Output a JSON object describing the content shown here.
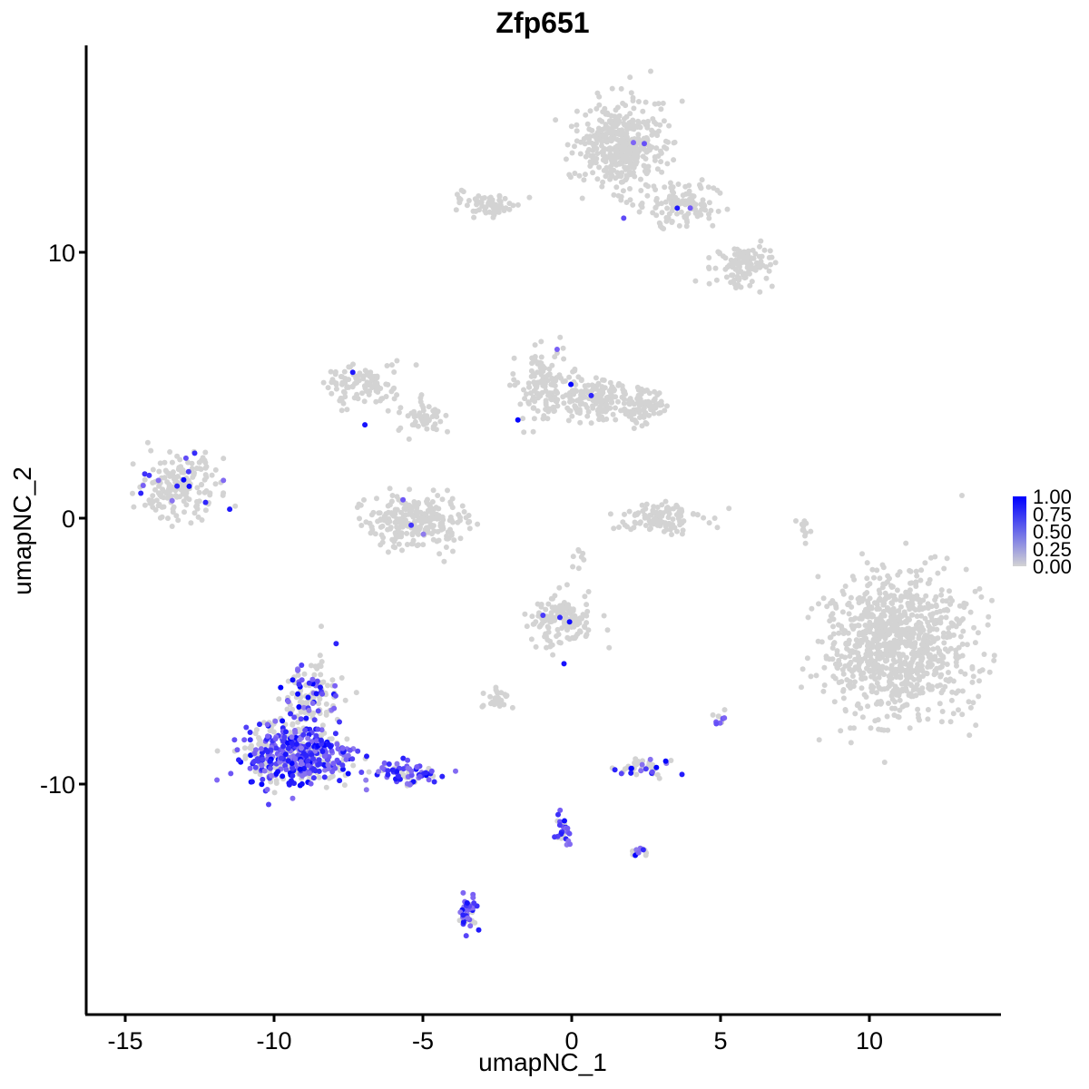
{
  "chart_data": {
    "type": "scatter",
    "title": "Zfp651",
    "xlabel": "umapNC_1",
    "ylabel": "umapNC_2",
    "xlim": [
      -16.5,
      14.2
    ],
    "ylim": [
      -18.4,
      17.8
    ],
    "x_ticks": [
      -15,
      -10,
      -5,
      0,
      5,
      10
    ],
    "x_tick_labels": [
      "-15",
      "-10",
      "-5",
      "0",
      "5",
      "10"
    ],
    "y_ticks": [
      -10,
      0,
      10
    ],
    "y_tick_labels": [
      "-10",
      "0",
      "10"
    ],
    "grid": false,
    "legend": {
      "position": "right",
      "type": "colorbar",
      "min": 0.0,
      "max": 1.0,
      "labels": [
        "1.00",
        "0.75",
        "0.50",
        "0.25",
        "0.00"
      ],
      "low_color": "#d3d3d3",
      "high_color": "#0000ff"
    },
    "clusters": [
      {
        "cx": 1.7,
        "cy": 14.0,
        "rx": 1.3,
        "ry": 1.5,
        "n": 420,
        "expr_frac": 0.005
      },
      {
        "cx": 3.5,
        "cy": 11.8,
        "rx": 1.2,
        "ry": 0.8,
        "n": 120,
        "expr_frac": 0.01
      },
      {
        "cx": 5.8,
        "cy": 9.5,
        "rx": 0.9,
        "ry": 0.7,
        "n": 110,
        "expr_frac": 0.0
      },
      {
        "cx": -2.8,
        "cy": 11.8,
        "rx": 1.0,
        "ry": 0.35,
        "n": 70,
        "expr_frac": 0.02
      },
      {
        "cx": -7.0,
        "cy": 5.0,
        "rx": 1.3,
        "ry": 0.8,
        "n": 110,
        "expr_frac": 0.01
      },
      {
        "cx": -5.0,
        "cy": 3.8,
        "rx": 0.8,
        "ry": 0.5,
        "n": 50,
        "expr_frac": 0.0
      },
      {
        "cx": -1.0,
        "cy": 5.0,
        "rx": 0.7,
        "ry": 1.2,
        "n": 120,
        "expr_frac": 0.01
      },
      {
        "cx": 0.6,
        "cy": 4.5,
        "rx": 1.2,
        "ry": 0.8,
        "n": 170,
        "expr_frac": 0.01
      },
      {
        "cx": 2.3,
        "cy": 4.2,
        "rx": 0.8,
        "ry": 0.6,
        "n": 90,
        "expr_frac": 0.01
      },
      {
        "cx": -5.2,
        "cy": -0.1,
        "rx": 1.5,
        "ry": 0.9,
        "n": 260,
        "expr_frac": 0.015
      },
      {
        "cx": 3.1,
        "cy": 0.0,
        "rx": 1.2,
        "ry": 0.55,
        "n": 110,
        "expr_frac": 0.0
      },
      {
        "cx": -13.2,
        "cy": 1.2,
        "rx": 1.2,
        "ry": 1.0,
        "n": 190,
        "expr_frac": 0.09
      },
      {
        "cx": 10.9,
        "cy": -4.8,
        "rx": 2.1,
        "ry": 2.4,
        "n": 950,
        "expr_frac": 0.002
      },
      {
        "cx": -0.3,
        "cy": -3.8,
        "rx": 1.0,
        "ry": 0.9,
        "n": 150,
        "expr_frac": 0.03
      },
      {
        "cx": -2.5,
        "cy": -6.8,
        "rx": 0.5,
        "ry": 0.3,
        "n": 30,
        "expr_frac": 0.0
      },
      {
        "cx": -8.8,
        "cy": -6.8,
        "rx": 0.8,
        "ry": 1.3,
        "n": 130,
        "expr_frac": 0.3
      },
      {
        "cx": -9.2,
        "cy": -8.9,
        "rx": 1.6,
        "ry": 1.0,
        "n": 500,
        "expr_frac": 0.62
      },
      {
        "cx": -5.4,
        "cy": -9.6,
        "rx": 1.2,
        "ry": 0.4,
        "n": 70,
        "expr_frac": 0.72
      },
      {
        "cx": -3.5,
        "cy": -14.8,
        "rx": 0.25,
        "ry": 0.6,
        "n": 40,
        "expr_frac": 0.8
      },
      {
        "cx": -0.3,
        "cy": -11.7,
        "rx": 0.25,
        "ry": 0.5,
        "n": 30,
        "expr_frac": 0.7
      },
      {
        "cx": 2.3,
        "cy": -9.4,
        "rx": 0.8,
        "ry": 0.25,
        "n": 45,
        "expr_frac": 0.3
      },
      {
        "cx": 2.3,
        "cy": -12.5,
        "rx": 0.25,
        "ry": 0.2,
        "n": 15,
        "expr_frac": 0.3
      },
      {
        "cx": 5.0,
        "cy": -7.5,
        "rx": 0.2,
        "ry": 0.3,
        "n": 12,
        "expr_frac": 0.5
      },
      {
        "cx": 7.8,
        "cy": -0.3,
        "rx": 0.2,
        "ry": 0.5,
        "n": 12,
        "expr_frac": 0.0
      },
      {
        "cx": 0.3,
        "cy": -1.5,
        "rx": 0.2,
        "ry": 0.3,
        "n": 8,
        "expr_frac": 0.0
      }
    ],
    "expression_range": [
      0.0,
      1.0
    ]
  },
  "colors": {
    "low": "#d3d3d3",
    "high": "#0000ff",
    "mid": "#7b61f5",
    "axis": "#000000"
  }
}
